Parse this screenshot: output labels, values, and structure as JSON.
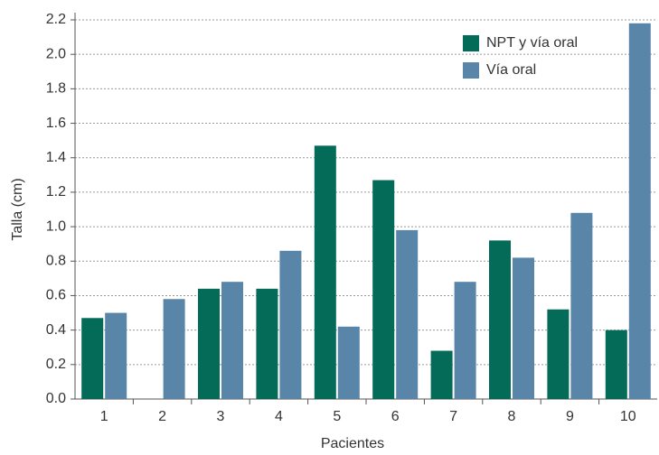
{
  "chart_data": {
    "type": "bar",
    "x_label": "Pacientes",
    "y_label": "Talla (cm)",
    "categories": [
      "1",
      "2",
      "3",
      "4",
      "5",
      "6",
      "7",
      "8",
      "9",
      "10"
    ],
    "series": [
      {
        "name": "NPT y vía oral",
        "color": "#036b58",
        "values": [
          0.47,
          null,
          0.64,
          0.64,
          1.47,
          1.27,
          0.28,
          0.92,
          0.52,
          0.4
        ]
      },
      {
        "name": "Vía oral",
        "color": "#5985a8",
        "values": [
          0.5,
          0.58,
          0.68,
          0.86,
          0.42,
          0.98,
          0.68,
          0.82,
          1.08,
          2.18
        ]
      }
    ],
    "ylim": [
      0,
      2.2
    ],
    "yticks": [
      {
        "value": 0,
        "label": "0.0"
      },
      0.2,
      0.4,
      0.6,
      0.8,
      {
        "value": 1,
        "label": "1.0"
      },
      1.2,
      1.4,
      1.6,
      1.8,
      {
        "value": 2,
        "label": "2.0"
      },
      2.2
    ],
    "grid": true,
    "legend": "upper right"
  }
}
